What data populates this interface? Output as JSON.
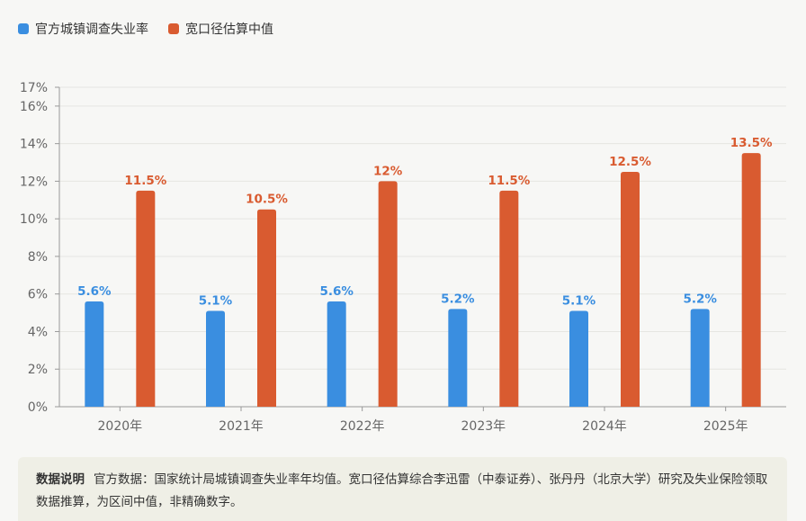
{
  "legend": {
    "items": [
      {
        "label": "官方城镇调查失业率",
        "color": "#3a8ee0"
      },
      {
        "label": "宽口径估算中值",
        "color": "#d95b30"
      }
    ]
  },
  "chart_data": {
    "type": "bar",
    "categories": [
      "2020年",
      "2021年",
      "2022年",
      "2023年",
      "2024年",
      "2025年"
    ],
    "series": [
      {
        "name": "官方城镇调查失业率",
        "values": [
          5.6,
          5.1,
          5.6,
          5.2,
          5.1,
          5.2
        ],
        "labels": [
          "5.6%",
          "5.1%",
          "5.6%",
          "5.2%",
          "5.1%",
          "5.2%"
        ],
        "color": "#3a8ee0"
      },
      {
        "name": "宽口径估算中值",
        "values": [
          11.5,
          10.5,
          12,
          11.5,
          12.5,
          13.5
        ],
        "labels": [
          "11.5%",
          "10.5%",
          "12%",
          "11.5%",
          "12.5%",
          "13.5%"
        ],
        "color": "#d95b30"
      }
    ],
    "y_ticks": [
      0,
      2,
      4,
      6,
      8,
      10,
      12,
      14,
      16,
      17
    ],
    "y_tick_labels": [
      "0%",
      "2%",
      "4%",
      "6%",
      "8%",
      "10%",
      "12%",
      "14%",
      "16%",
      "17%"
    ],
    "ylim": [
      0,
      17
    ],
    "grid": true,
    "legend_position": "top-left"
  },
  "note": {
    "title": "数据说明",
    "text": "官方数据：国家统计局城镇调查失业率年均值。宽口径估算综合李迅雷（中泰证券）、张丹丹（北京大学）研究及失业保险领取数据推算，为区间中值，非精确数字。"
  }
}
